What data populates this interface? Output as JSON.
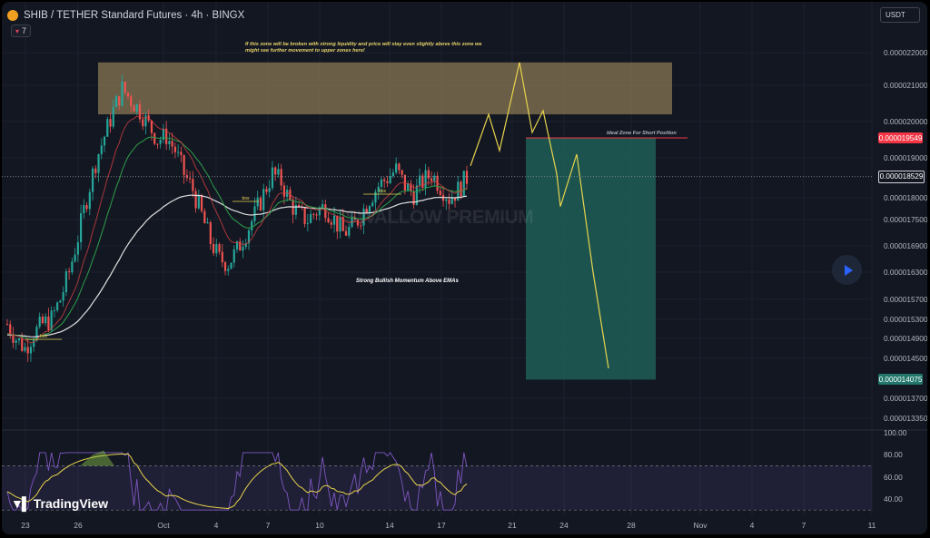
{
  "header": {
    "title": "SHIB / TETHER Standard Futures · 4h · BINGX",
    "indicator_count": "7",
    "currency": "USDT"
  },
  "watermark": "SWALLOW PREMIUM",
  "annotations": {
    "top_note": "If this zone will be broken with strong liquidity and price will stay even slightly above this zone we might see further movement to upper zones here!",
    "bullish_note": "Strong Bullish Momentum Above EMAs",
    "short_note": "Ideal Zone For Short Position",
    "bos_label": "bos"
  },
  "price_axis": {
    "ticks": [
      "0.000022000",
      "0.000021000",
      "0.000020000",
      "0.000019000",
      "0.000018000",
      "0.000017500",
      "0.000016900",
      "0.000016300",
      "0.000015700",
      "0.000015300",
      "0.000014900",
      "0.000014500",
      "0.000013700",
      "0.000013350"
    ],
    "labels": [
      {
        "text": "0.000019549",
        "color": "#f23645"
      },
      {
        "text": "0.000018529",
        "color": "#131722"
      },
      {
        "text": "0.000014075",
        "color": "#22766b"
      }
    ]
  },
  "rsi_axis": {
    "ticks": [
      "100.00",
      "80.00",
      "60.00",
      "40.00"
    ]
  },
  "time_axis": {
    "ticks": [
      "23",
      "26",
      "Oct",
      "4",
      "7",
      "10",
      "14",
      "17",
      "21",
      "24",
      "28",
      "Nov",
      "4",
      "7",
      "11"
    ]
  },
  "logo": {
    "text": "TradingView"
  },
  "colors": {
    "resistance_zone": "#8c7a55",
    "short_zone": "#1e5e57",
    "projection": "#e8d44d",
    "ema_fast": "#d04040",
    "ema_mid": "#2e9e4a",
    "ema_slow": "#e0e0e0",
    "candle_up": "#26a69a",
    "candle_down": "#ef5350",
    "rsi_line": "#7e57c2",
    "rsi_ma": "#e8d44d"
  },
  "chart_data": {
    "type": "candlestick",
    "title": "SHIB / TETHER Standard Futures · 4h · BINGX",
    "price_range": [
      1.32e-05,
      2.26e-05
    ],
    "current_price": 1.8529e-05,
    "resistance_zone": [
      2.02e-05,
      2.17e-05
    ],
    "short_zone": {
      "entry": 1.9549e-05,
      "target": 1.4075e-05
    },
    "close_path": [
      1.52e-05,
      1.49e-05,
      1.47e-05,
      1.5e-05,
      1.52e-05,
      1.53e-05,
      1.57e-05,
      1.63e-05,
      1.71e-05,
      1.8e-05,
      1.89e-05,
      1.96e-05,
      2.03e-05,
      2.09e-05,
      2.06e-05,
      2.03e-05,
      1.99e-05,
      1.95e-05,
      1.96e-05,
      1.92e-05,
      1.86e-05,
      1.82e-05,
      1.76e-05,
      1.7e-05,
      1.66e-05,
      1.65e-05,
      1.68e-05,
      1.72e-05,
      1.76e-05,
      1.81e-05,
      1.86e-05,
      1.84e-05,
      1.79e-05,
      1.76e-05,
      1.75e-05,
      1.77e-05,
      1.78e-05,
      1.75e-05,
      1.72e-05,
      1.73e-05,
      1.76e-05,
      1.8e-05,
      1.83e-05,
      1.85e-05,
      1.87e-05,
      1.83e-05,
      1.81e-05,
      1.84e-05,
      1.86e-05,
      1.83e-05,
      1.8e-05,
      1.82e-05,
      1.85e-05
    ],
    "projection": [
      1.88e-05,
      2.02e-05,
      1.92e-05,
      2.17e-05,
      1.97e-05,
      2.03e-05,
      1.86e-05,
      1.78e-05,
      1.91e-05,
      1.63e-05,
      1.43e-05
    ]
  }
}
